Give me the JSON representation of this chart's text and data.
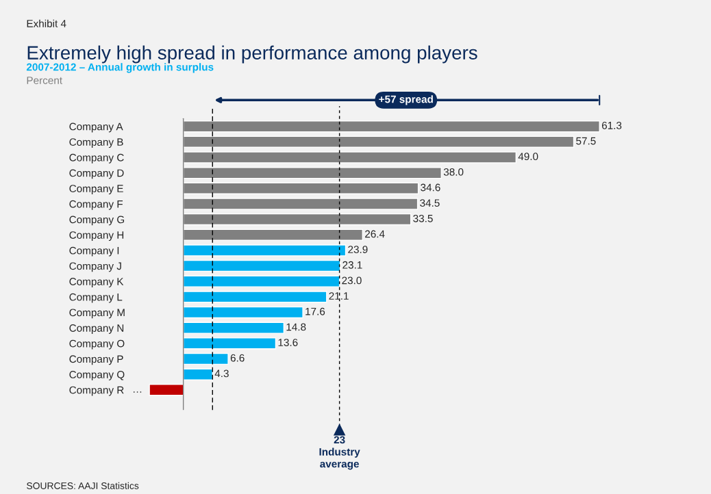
{
  "chart_data": {
    "type": "bar",
    "orientation": "horizontal",
    "title": "Extremely high spread in performance among players",
    "subtitle": "2007-2012 – Annual growth in surplus",
    "annotations": [
      "Exhibit 4",
      "Percent",
      "+57 spread",
      "SOURCES: AAJI Statistics"
    ],
    "categories": [
      "Company A",
      "Company B",
      "Company C",
      "Company D",
      "Company E",
      "Company F",
      "Company G",
      "Company H",
      "Company I",
      "Company J",
      "Company K",
      "Company L",
      "Company M",
      "Company N",
      "Company O",
      "Company P",
      "Company Q",
      "Company R"
    ],
    "values": [
      61.3,
      57.5,
      49.0,
      38.0,
      34.6,
      34.5,
      33.5,
      26.4,
      23.9,
      23.1,
      23.0,
      21.1,
      17.6,
      14.8,
      13.6,
      6.6,
      4.3,
      -5
    ],
    "value_labels": [
      "61.3",
      "57.5",
      "49.0",
      "38.0",
      "34.6",
      "34.5",
      "33.5",
      "26.4",
      "23.9",
      "23.1",
      "23.0",
      "21.1",
      "17.6",
      "14.8",
      "13.6",
      "6.6",
      "4.3",
      "…"
    ],
    "colors": [
      "#808080",
      "#808080",
      "#808080",
      "#808080",
      "#808080",
      "#808080",
      "#808080",
      "#808080",
      "#00b0f0",
      "#00b0f0",
      "#00b0f0",
      "#00b0f0",
      "#00b0f0",
      "#00b0f0",
      "#00b0f0",
      "#00b0f0",
      "#00b0f0",
      "#c00000"
    ],
    "ref_lines": [
      {
        "axis": "x",
        "value": 4.3,
        "label": null,
        "color": "#000000",
        "line_style": "dashed"
      },
      {
        "axis": "x",
        "value": 23,
        "label": "23\nIndustry\naverage",
        "color": "#000000",
        "line_style": "dotted"
      }
    ],
    "grid": false
  }
}
